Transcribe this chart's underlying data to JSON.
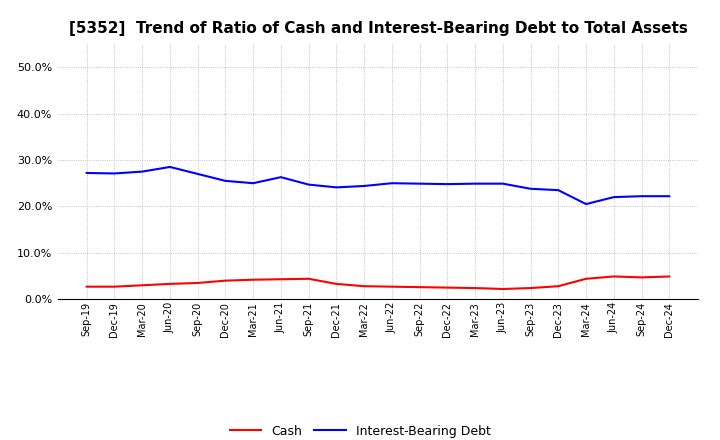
{
  "title": "[5352]  Trend of Ratio of Cash and Interest-Bearing Debt to Total Assets",
  "x_labels": [
    "Sep-19",
    "Dec-19",
    "Mar-20",
    "Jun-20",
    "Sep-20",
    "Dec-20",
    "Mar-21",
    "Jun-21",
    "Sep-21",
    "Dec-21",
    "Mar-22",
    "Jun-22",
    "Sep-22",
    "Dec-22",
    "Mar-23",
    "Jun-23",
    "Sep-23",
    "Dec-23",
    "Mar-24",
    "Jun-24",
    "Sep-24",
    "Dec-24"
  ],
  "cash": [
    0.027,
    0.027,
    0.03,
    0.033,
    0.035,
    0.04,
    0.042,
    0.043,
    0.044,
    0.033,
    0.028,
    0.027,
    0.026,
    0.025,
    0.024,
    0.022,
    0.024,
    0.028,
    0.044,
    0.049,
    0.047,
    0.049
  ],
  "debt": [
    0.272,
    0.271,
    0.275,
    0.285,
    0.27,
    0.255,
    0.25,
    0.263,
    0.247,
    0.241,
    0.244,
    0.25,
    0.249,
    0.248,
    0.249,
    0.249,
    0.238,
    0.235,
    0.205,
    0.22,
    0.222,
    0.222
  ],
  "cash_color": "#ff0000",
  "debt_color": "#0000ff",
  "ylim": [
    0.0,
    0.55
  ],
  "yticks": [
    0.0,
    0.1,
    0.2,
    0.3,
    0.4,
    0.5
  ],
  "background_color": "#ffffff",
  "grid_color": "#b0b0b0",
  "title_fontsize": 11,
  "legend_cash": "Cash",
  "legend_debt": "Interest-Bearing Debt",
  "line_width": 1.5
}
